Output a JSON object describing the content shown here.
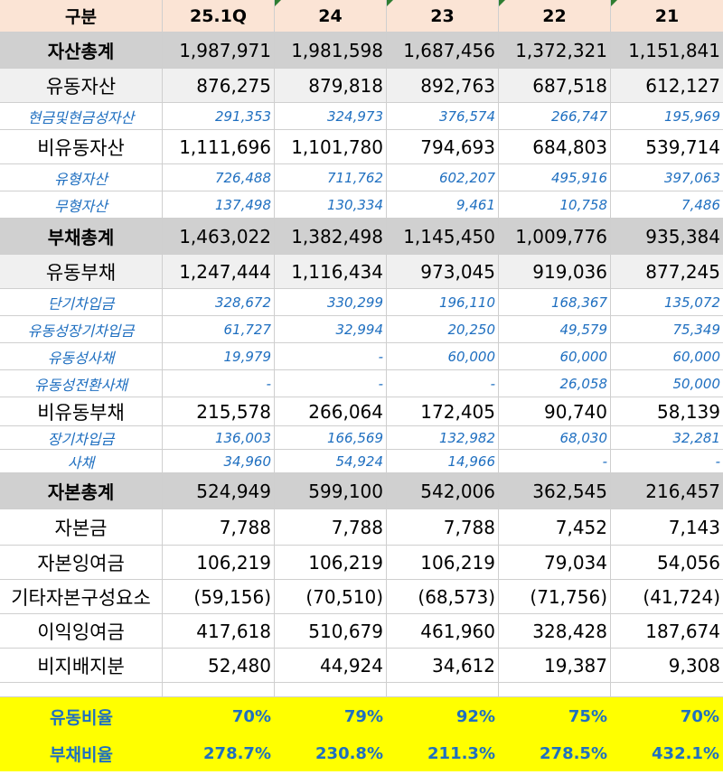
{
  "header": {
    "label": "구분",
    "columns": [
      "25.1Q",
      "24",
      "23",
      "22",
      "21"
    ]
  },
  "rows": [
    {
      "label": "자산총계",
      "values": [
        "1,987,971",
        "1,981,598",
        "1,687,456",
        "1,372,321",
        "1,151,841"
      ]
    },
    {
      "label": "유동자산",
      "values": [
        "876,275",
        "879,818",
        "892,763",
        "687,518",
        "612,127"
      ]
    },
    {
      "label": "현금및현금성자산",
      "values": [
        "291,353",
        "324,973",
        "376,574",
        "266,747",
        "195,969"
      ]
    },
    {
      "label": "비유동자산",
      "values": [
        "1,111,696",
        "1,101,780",
        "794,693",
        "684,803",
        "539,714"
      ]
    },
    {
      "label": "유형자산",
      "values": [
        "726,488",
        "711,762",
        "602,207",
        "495,916",
        "397,063"
      ]
    },
    {
      "label": "무형자산",
      "values": [
        "137,498",
        "130,334",
        "9,461",
        "10,758",
        "7,486"
      ]
    },
    {
      "label": "부채총계",
      "values": [
        "1,463,022",
        "1,382,498",
        "1,145,450",
        "1,009,776",
        "935,384"
      ]
    },
    {
      "label": "유동부채",
      "values": [
        "1,247,444",
        "1,116,434",
        "973,045",
        "919,036",
        "877,245"
      ]
    },
    {
      "label": "단기차입금",
      "values": [
        "328,672",
        "330,299",
        "196,110",
        "168,367",
        "135,072"
      ]
    },
    {
      "label": "유동성장기차입금",
      "values": [
        "61,727",
        "32,994",
        "20,250",
        "49,579",
        "75,349"
      ]
    },
    {
      "label": "유동성사채",
      "values": [
        "19,979",
        "-",
        "60,000",
        "60,000",
        "60,000"
      ]
    },
    {
      "label": "유동성전환사채",
      "values": [
        "-",
        "-",
        "-",
        "26,058",
        "50,000"
      ]
    },
    {
      "label": "비유동부채",
      "values": [
        "215,578",
        "266,064",
        "172,405",
        "90,740",
        "58,139"
      ]
    },
    {
      "label": "장기차입금",
      "values": [
        "136,003",
        "166,569",
        "132,982",
        "68,030",
        "32,281"
      ]
    },
    {
      "label": "사채",
      "values": [
        "34,960",
        "54,924",
        "14,966",
        "-",
        "-"
      ]
    },
    {
      "label": "자본총계",
      "values": [
        "524,949",
        "599,100",
        "542,006",
        "362,545",
        "216,457"
      ]
    },
    {
      "label": "자본금",
      "values": [
        "7,788",
        "7,788",
        "7,788",
        "7,452",
        "7,143"
      ]
    },
    {
      "label": "자본잉여금",
      "values": [
        "106,219",
        "106,219",
        "106,219",
        "79,034",
        "54,056"
      ]
    },
    {
      "label": "기타자본구성요소",
      "values": [
        "(59,156)",
        "(70,510)",
        "(68,573)",
        "(71,756)",
        "(41,724)"
      ]
    },
    {
      "label": "이익잉여금",
      "values": [
        "417,618",
        "510,679",
        "461,960",
        "328,428",
        "187,674"
      ]
    },
    {
      "label": "비지배지분",
      "values": [
        "52,480",
        "44,924",
        "34,612",
        "19,387",
        "9,308"
      ]
    }
  ],
  "ratios": [
    {
      "label": "유동비율",
      "values": [
        "70%",
        "79%",
        "92%",
        "75%",
        "70%"
      ]
    },
    {
      "label": "부채비율",
      "values": [
        "278.7%",
        "230.8%",
        "211.3%",
        "278.5%",
        "432.1%"
      ]
    }
  ],
  "colors": {
    "header_bg": "#fbe4d5",
    "total_bg": "#d0d0d0",
    "sub_text": "#1f6fc0",
    "ratio_bg": "#ffff00",
    "ratio_text": "#1f6fc0"
  }
}
